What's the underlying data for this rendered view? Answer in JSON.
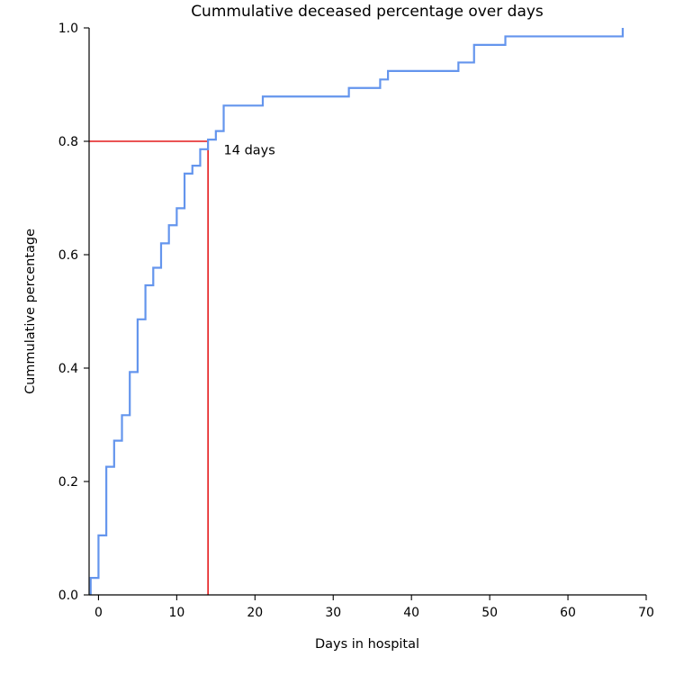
{
  "chart_data": {
    "type": "line",
    "title": "Cummulative deceased percentage over days",
    "xlabel": "Days in hospital",
    "ylabel": "Cummulative percentage",
    "xlim": [
      -1.2,
      70
    ],
    "ylim": [
      0,
      1.0
    ],
    "x_ticks": [
      0,
      10,
      20,
      30,
      40,
      50,
      60,
      70
    ],
    "y_ticks": [
      0.0,
      0.2,
      0.4,
      0.6,
      0.8,
      1.0
    ],
    "x_tick_labels": [
      "0",
      "10",
      "20",
      "30",
      "40",
      "50",
      "60",
      "70"
    ],
    "y_tick_labels": [
      "0.0",
      "0.2",
      "0.4",
      "0.6",
      "0.8",
      "1.0"
    ],
    "grid": false,
    "series": [
      {
        "step": "post",
        "color": "#6495ed",
        "x": [
          -1,
          0,
          1,
          2,
          3,
          4,
          5,
          6,
          7,
          8,
          9,
          10,
          11,
          12,
          13,
          14,
          15,
          16,
          21,
          32,
          36,
          37,
          46,
          48,
          52,
          67
        ],
        "y": [
          0.03,
          0.105,
          0.226,
          0.272,
          0.317,
          0.393,
          0.486,
          0.546,
          0.577,
          0.62,
          0.652,
          0.682,
          0.743,
          0.757,
          0.786,
          0.803,
          0.818,
          0.863,
          0.879,
          0.894,
          0.909,
          0.924,
          0.939,
          0.97,
          0.985,
          1.0
        ]
      }
    ],
    "reference_lines": {
      "color": "#e41a1c",
      "x": 14,
      "y": 0.8
    },
    "annotations": [
      {
        "text": "14 days",
        "x": 16,
        "y": 0.785
      }
    ]
  }
}
